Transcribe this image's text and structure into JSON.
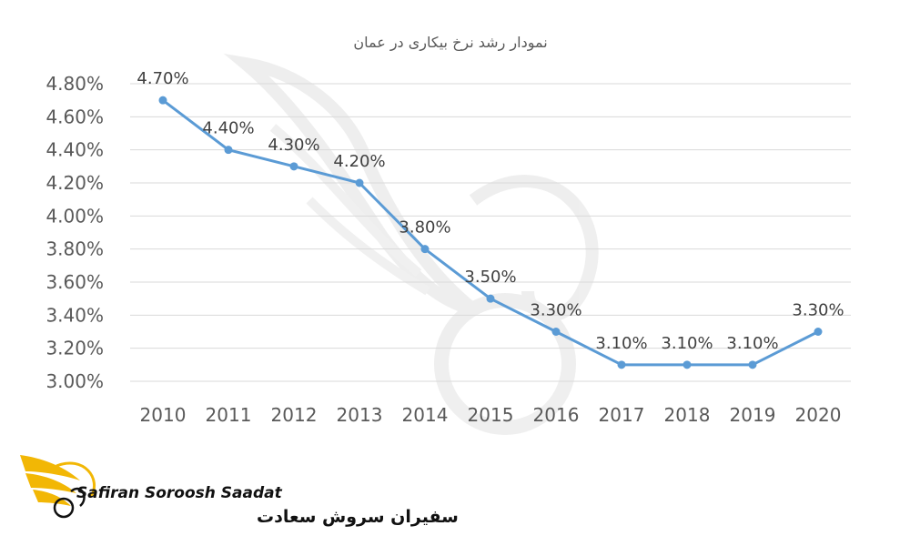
{
  "colors": {
    "line": "#5b9bd5",
    "grid": "#d9d9d9",
    "watermark": "#ededed",
    "logo_gold": "#f2b705"
  },
  "logo": {
    "name_en": "Safiran Soroosh Saadat",
    "name_fa": "سفیران سروش سعادت"
  },
  "chart_data": {
    "type": "line",
    "title": "نمودار رشد نرخ بیکاری در عمان",
    "xlabel": "",
    "ylabel": "",
    "categories": [
      "2010",
      "2011",
      "2012",
      "2013",
      "2014",
      "2015",
      "2016",
      "2017",
      "2018",
      "2019",
      "2020"
    ],
    "values": [
      4.7,
      4.4,
      4.3,
      4.2,
      3.8,
      3.5,
      3.3,
      3.1,
      3.1,
      3.1,
      3.3
    ],
    "data_labels": [
      "4.70%",
      "4.40%",
      "4.30%",
      "4.20%",
      "3.80%",
      "3.50%",
      "3.30%",
      "3.10%",
      "3.10%",
      "3.10%",
      "3.30%"
    ],
    "y_ticks": [
      3.0,
      3.2,
      3.4,
      3.6,
      3.8,
      4.0,
      4.2,
      4.4,
      4.6,
      4.8
    ],
    "y_tick_labels": [
      "3.00%",
      "3.20%",
      "3.40%",
      "3.60%",
      "3.80%",
      "4.00%",
      "4.20%",
      "4.40%",
      "4.60%",
      "4.80%"
    ],
    "ylim": [
      3.0,
      4.8
    ],
    "grid": true,
    "legend": "none"
  }
}
